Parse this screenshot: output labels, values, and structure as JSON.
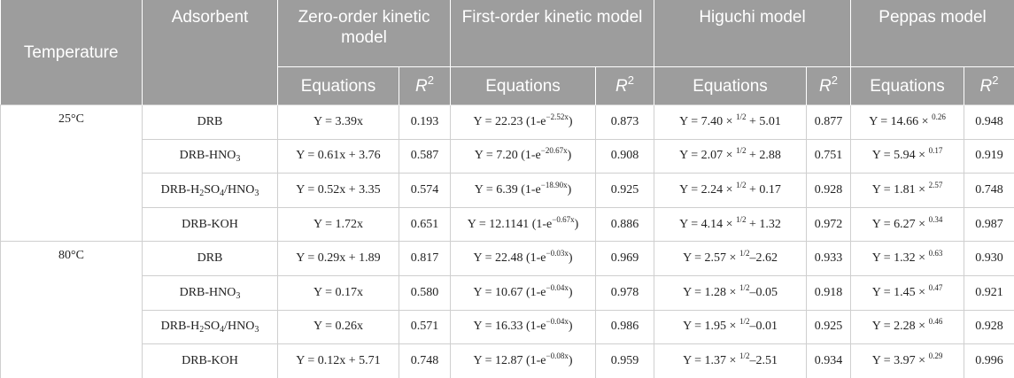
{
  "header": {
    "temperature": "Temperature",
    "adsorbent": "Adsorbent",
    "models": [
      "Zero-order kinetic model",
      "First-order kinetic model",
      "Higuchi model",
      "Peppas model"
    ],
    "subheaders": [
      {
        "equations": "Equations",
        "r": "R",
        "sup": "2"
      },
      {
        "equations": "Equations",
        "r": "R",
        "sup": "2"
      },
      {
        "equations": "Equations",
        "r": "R",
        "sup": "2"
      },
      {
        "equations": "Equations",
        "r": "R",
        "sup": "2"
      }
    ]
  },
  "groups": [
    {
      "temperature": "25°C",
      "rows": [
        {
          "adsorbent": [
            {
              "t": "DRB"
            }
          ],
          "cells": [
            [
              {
                "t": "Y = 3.39x"
              }
            ],
            "0.193",
            [
              {
                "t": "Y = 22.23 (1-e"
              },
              {
                "sup": "−2.52x"
              },
              {
                "t": ")"
              }
            ],
            "0.873",
            [
              {
                "t": "Y = 7.40 × "
              },
              {
                "sup": "1/2"
              },
              {
                "t": " + 5.01"
              }
            ],
            "0.877",
            [
              {
                "t": "Y = 14.66 × "
              },
              {
                "sup": "0.26"
              }
            ],
            "0.948"
          ]
        },
        {
          "adsorbent": [
            {
              "t": "DRB-HNO"
            },
            {
              "sub": "3"
            }
          ],
          "cells": [
            [
              {
                "t": "Y = 0.61x + 3.76"
              }
            ],
            "0.587",
            [
              {
                "t": "Y = 7.20 (1-e"
              },
              {
                "sup": "−20.67x"
              },
              {
                "t": ")"
              }
            ],
            "0.908",
            [
              {
                "t": "Y = 2.07 × "
              },
              {
                "sup": "1/2"
              },
              {
                "t": " + 2.88"
              }
            ],
            "0.751",
            [
              {
                "t": "Y = 5.94 × "
              },
              {
                "sup": "0.17"
              }
            ],
            "0.919"
          ]
        },
        {
          "adsorbent": [
            {
              "t": "DRB-H"
            },
            {
              "sub": "2"
            },
            {
              "t": "SO"
            },
            {
              "sub": "4"
            },
            {
              "t": "/HNO"
            },
            {
              "sub": "3"
            }
          ],
          "cells": [
            [
              {
                "t": "Y = 0.52x + 3.35"
              }
            ],
            "0.574",
            [
              {
                "t": "Y = 6.39 (1-e"
              },
              {
                "sup": "−18.90x"
              },
              {
                "t": ")"
              }
            ],
            "0.925",
            [
              {
                "t": "Y = 2.24 × "
              },
              {
                "sup": "1/2"
              },
              {
                "t": " + 0.17"
              }
            ],
            "0.928",
            [
              {
                "t": "Y = 1.81 × "
              },
              {
                "sup": "2.57"
              }
            ],
            "0.748"
          ]
        },
        {
          "adsorbent": [
            {
              "t": "DRB-KOH"
            }
          ],
          "cells": [
            [
              {
                "t": "Y = 1.72x"
              }
            ],
            "0.651",
            [
              {
                "t": "Y = 12.1141 (1-e"
              },
              {
                "sup": "−0.67x"
              },
              {
                "t": ")"
              }
            ],
            "0.886",
            [
              {
                "t": "Y = 4.14 × "
              },
              {
                "sup": "1/2"
              },
              {
                "t": " + 1.32"
              }
            ],
            "0.972",
            [
              {
                "t": "Y = 6.27 × "
              },
              {
                "sup": "0.34"
              }
            ],
            "0.987"
          ]
        }
      ]
    },
    {
      "temperature": "80°C",
      "rows": [
        {
          "adsorbent": [
            {
              "t": "DRB"
            }
          ],
          "cells": [
            [
              {
                "t": "Y = 0.29x + 1.89"
              }
            ],
            "0.817",
            [
              {
                "t": "Y = 22.48 (1-e"
              },
              {
                "sup": "−0.03x"
              },
              {
                "t": ")"
              }
            ],
            "0.969",
            [
              {
                "t": "Y = 2.57 × "
              },
              {
                "sup": "1/2"
              },
              {
                "t": "–2.62"
              }
            ],
            "0.933",
            [
              {
                "t": "Y = 1.32 × "
              },
              {
                "sup": "0.63"
              }
            ],
            "0.930"
          ]
        },
        {
          "adsorbent": [
            {
              "t": "DRB-HNO"
            },
            {
              "sub": "3"
            }
          ],
          "cells": [
            [
              {
                "t": "Y = 0.17x"
              }
            ],
            "0.580",
            [
              {
                "t": "Y = 10.67 (1-e"
              },
              {
                "sup": "−0.04x"
              },
              {
                "t": ")"
              }
            ],
            "0.978",
            [
              {
                "t": "Y = 1.28 × "
              },
              {
                "sup": "1/2"
              },
              {
                "t": "–0.05"
              }
            ],
            "0.918",
            [
              {
                "t": "Y = 1.45 × "
              },
              {
                "sup": "0.47"
              }
            ],
            "0.921"
          ]
        },
        {
          "adsorbent": [
            {
              "t": "DRB-H"
            },
            {
              "sub": "2"
            },
            {
              "t": "SO"
            },
            {
              "sub": "4"
            },
            {
              "t": "/HNO"
            },
            {
              "sub": "3"
            }
          ],
          "cells": [
            [
              {
                "t": "Y = 0.26x"
              }
            ],
            "0.571",
            [
              {
                "t": "Y = 16.33 (1-e"
              },
              {
                "sup": "−0.04x"
              },
              {
                "t": ")"
              }
            ],
            "0.986",
            [
              {
                "t": "Y = 1.95 × "
              },
              {
                "sup": "1/2"
              },
              {
                "t": "–0.01"
              }
            ],
            "0.925",
            [
              {
                "t": "Y = 2.28 × "
              },
              {
                "sup": "0.46"
              }
            ],
            "0.928"
          ]
        },
        {
          "adsorbent": [
            {
              "t": "DRB-KOH"
            }
          ],
          "cells": [
            [
              {
                "t": "Y = 0.12x + 5.71"
              }
            ],
            "0.748",
            [
              {
                "t": "Y = 12.87 (1-e"
              },
              {
                "sup": "−0.08x"
              },
              {
                "t": ")"
              }
            ],
            "0.959",
            [
              {
                "t": "Y = 1.37 × "
              },
              {
                "sup": "1/2"
              },
              {
                "t": "–2.51"
              }
            ],
            "0.934",
            [
              {
                "t": "Y = 3.97 × "
              },
              {
                "sup": "0.29"
              }
            ],
            "0.996"
          ]
        }
      ]
    }
  ]
}
